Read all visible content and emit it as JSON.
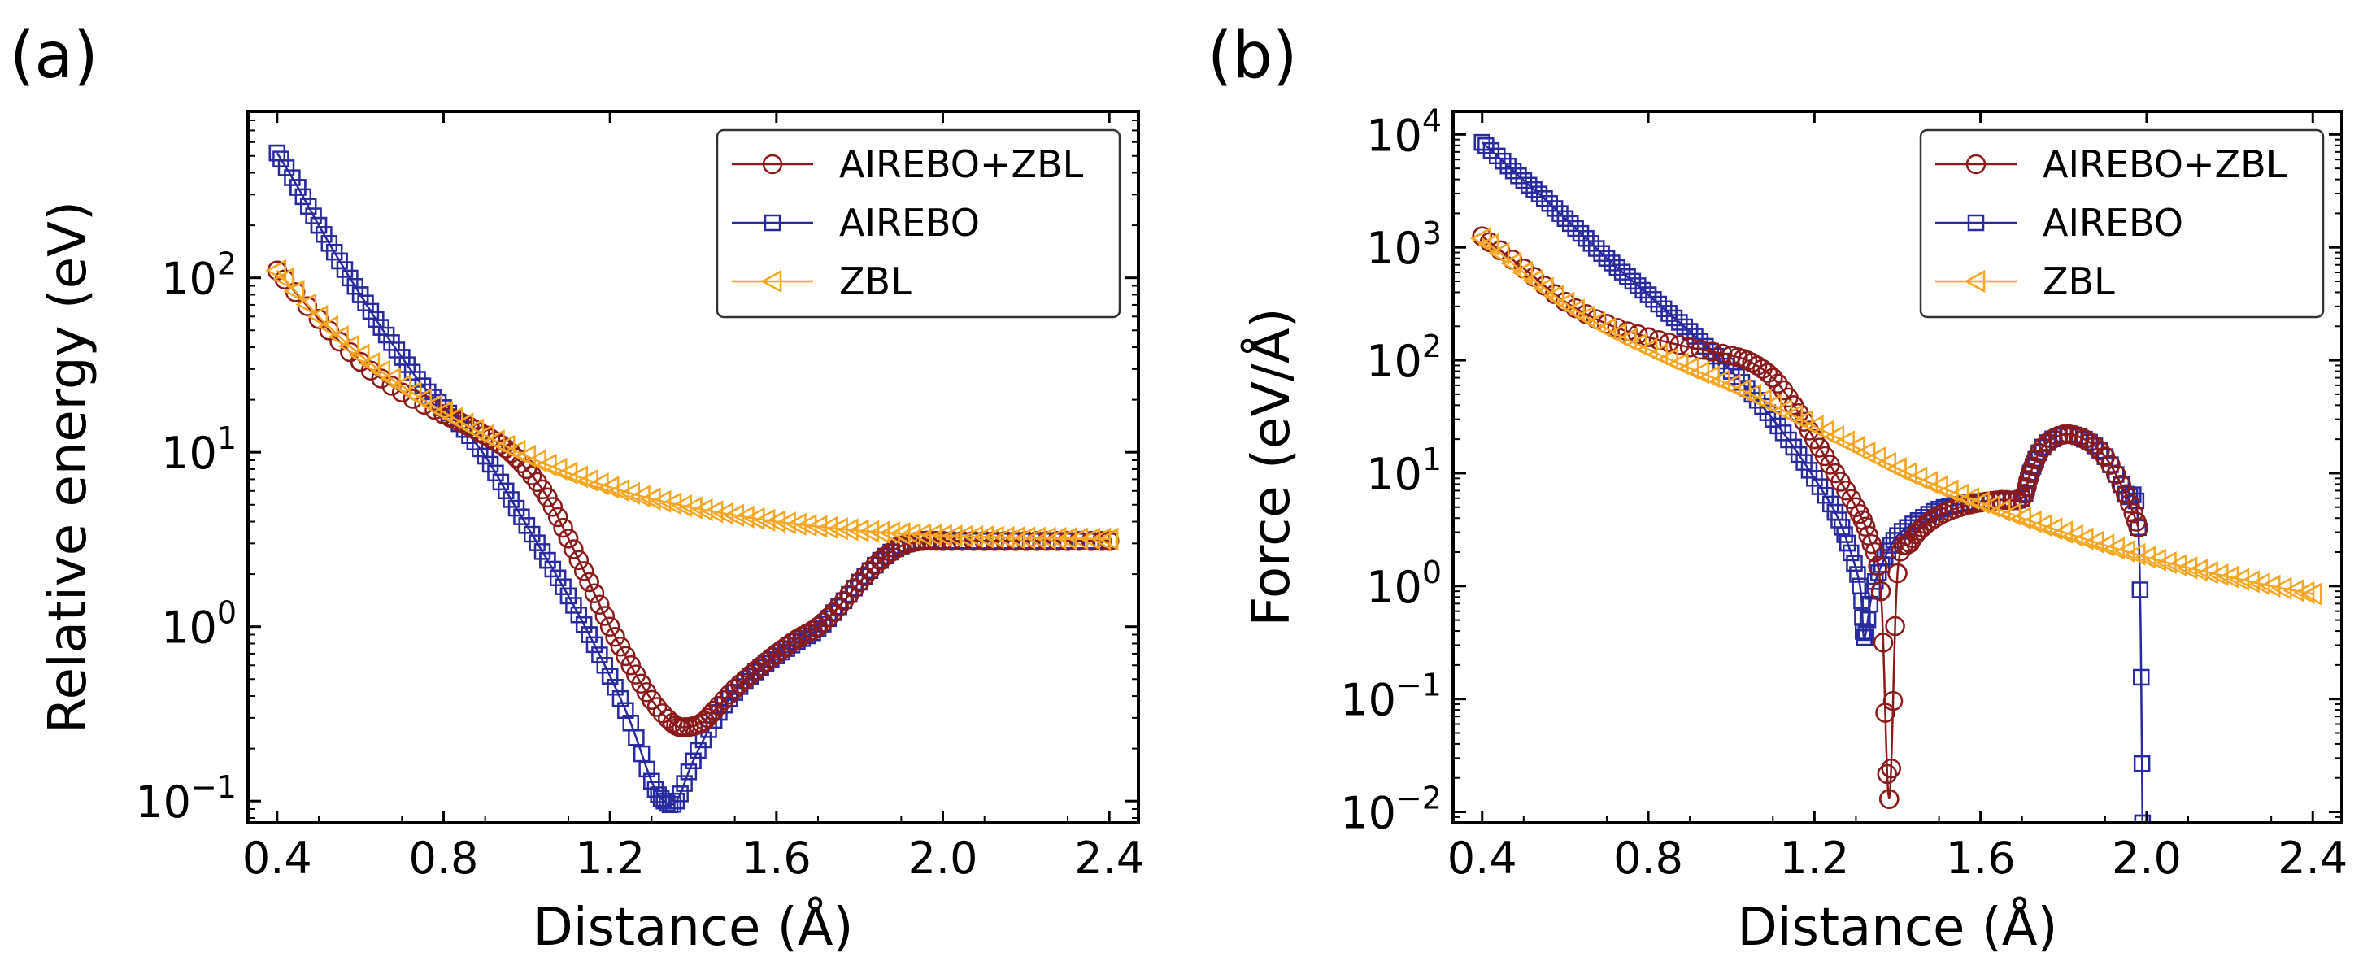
{
  "chart_data": [
    {
      "panel": "(a)",
      "type": "line",
      "title": "",
      "xlabel": "Distance (Å)",
      "ylabel": "Relative energy (eV)",
      "yscale": "log",
      "xlim": [
        0.33,
        2.47
      ],
      "ylim": [
        0.075,
        900
      ],
      "xticks": [
        0.4,
        0.8,
        1.2,
        1.6,
        2.0,
        2.4
      ],
      "xtick_labels": [
        "0.4",
        "0.8",
        "1.2",
        "1.6",
        "2.0",
        "2.4"
      ],
      "yticks": [
        0.1,
        1,
        10,
        100
      ],
      "ytick_labels": [
        {
          "base": "10",
          "exp": "−1"
        },
        {
          "base": "10",
          "exp": "0"
        },
        {
          "base": "10",
          "exp": "1"
        },
        {
          "base": "10",
          "exp": "2"
        }
      ],
      "grid": false,
      "legend_position": "top-right",
      "series": [
        {
          "name": "AIREBO+ZBL",
          "color": "#8b1a1a",
          "marker": "circle",
          "points": [
            [
              0.4,
              110
            ],
            [
              0.5,
              58
            ],
            [
              0.6,
              33
            ],
            [
              0.7,
              22
            ],
            [
              0.8,
              16.5
            ],
            [
              0.85,
              14.5
            ],
            [
              0.9,
              12.5
            ],
            [
              0.95,
              10.5
            ],
            [
              1.0,
              8
            ],
            [
              1.05,
              5.5
            ],
            [
              1.1,
              3.2
            ],
            [
              1.15,
              1.8
            ],
            [
              1.2,
              1.0
            ],
            [
              1.25,
              0.6
            ],
            [
              1.3,
              0.38
            ],
            [
              1.35,
              0.28
            ],
            [
              1.38,
              0.265
            ],
            [
              1.42,
              0.28
            ],
            [
              1.45,
              0.33
            ],
            [
              1.5,
              0.44
            ],
            [
              1.55,
              0.56
            ],
            [
              1.6,
              0.7
            ],
            [
              1.65,
              0.85
            ],
            [
              1.7,
              1.0
            ],
            [
              1.75,
              1.3
            ],
            [
              1.8,
              1.8
            ],
            [
              1.85,
              2.4
            ],
            [
              1.9,
              2.9
            ],
            [
              1.95,
              3.1
            ],
            [
              2.0,
              3.1
            ],
            [
              2.1,
              3.1
            ],
            [
              2.2,
              3.1
            ],
            [
              2.3,
              3.1
            ],
            [
              2.4,
              3.1
            ]
          ]
        },
        {
          "name": "AIREBO",
          "color": "#2a2aa0",
          "marker": "square",
          "points": [
            [
              0.4,
              520
            ],
            [
              0.45,
              330
            ],
            [
              0.5,
              200
            ],
            [
              0.55,
              125
            ],
            [
              0.6,
              80
            ],
            [
              0.65,
              52
            ],
            [
              0.7,
              35
            ],
            [
              0.75,
              24
            ],
            [
              0.8,
              18
            ],
            [
              0.85,
              13.5
            ],
            [
              0.9,
              9.5
            ],
            [
              0.95,
              6
            ],
            [
              1.0,
              3.8
            ],
            [
              1.05,
              2.4
            ],
            [
              1.1,
              1.5
            ],
            [
              1.15,
              0.9
            ],
            [
              1.2,
              0.52
            ],
            [
              1.25,
              0.28
            ],
            [
              1.3,
              0.13
            ],
            [
              1.33,
              0.1
            ],
            [
              1.36,
              0.1
            ],
            [
              1.4,
              0.17
            ],
            [
              1.45,
              0.29
            ],
            [
              1.5,
              0.42
            ],
            [
              1.55,
              0.55
            ],
            [
              1.6,
              0.68
            ],
            [
              1.65,
              0.82
            ],
            [
              1.7,
              0.97
            ],
            [
              1.75,
              1.3
            ],
            [
              1.8,
              1.8
            ],
            [
              1.85,
              2.4
            ],
            [
              1.9,
              2.9
            ],
            [
              1.95,
              3.1
            ],
            [
              2.0,
              3.1
            ],
            [
              2.1,
              3.1
            ],
            [
              2.2,
              3.1
            ],
            [
              2.3,
              3.1
            ],
            [
              2.4,
              3.1
            ]
          ]
        },
        {
          "name": "ZBL",
          "color": "#f5a623",
          "marker": "triangle-left",
          "points": [
            [
              0.4,
              110
            ],
            [
              0.5,
              60
            ],
            [
              0.6,
              36
            ],
            [
              0.7,
              24
            ],
            [
              0.8,
              17
            ],
            [
              0.9,
              12.5
            ],
            [
              1.0,
              9.5
            ],
            [
              1.1,
              7.6
            ],
            [
              1.2,
              6.3
            ],
            [
              1.3,
              5.4
            ],
            [
              1.4,
              4.8
            ],
            [
              1.5,
              4.35
            ],
            [
              1.6,
              4.0
            ],
            [
              1.7,
              3.75
            ],
            [
              1.8,
              3.55
            ],
            [
              1.9,
              3.42
            ],
            [
              2.0,
              3.33
            ],
            [
              2.1,
              3.27
            ],
            [
              2.2,
              3.23
            ],
            [
              2.3,
              3.2
            ],
            [
              2.4,
              3.18
            ]
          ]
        }
      ]
    },
    {
      "panel": "(b)",
      "type": "line",
      "title": "",
      "xlabel": "Distance (Å)",
      "ylabel": "Force (eV/Å)",
      "yscale": "log",
      "xlim": [
        0.33,
        2.47
      ],
      "ylim": [
        0.008,
        16000
      ],
      "xticks": [
        0.4,
        0.8,
        1.2,
        1.6,
        2.0,
        2.4
      ],
      "xtick_labels": [
        "0.4",
        "0.8",
        "1.2",
        "1.6",
        "2.0",
        "2.4"
      ],
      "yticks": [
        0.01,
        0.1,
        1,
        10,
        100,
        1000,
        10000
      ],
      "ytick_labels": [
        {
          "base": "10",
          "exp": "−2"
        },
        {
          "base": "10",
          "exp": "−1"
        },
        {
          "base": "10",
          "exp": "0"
        },
        {
          "base": "10",
          "exp": "1"
        },
        {
          "base": "10",
          "exp": "2"
        },
        {
          "base": "10",
          "exp": "3"
        },
        {
          "base": "10",
          "exp": "4"
        }
      ],
      "grid": false,
      "legend_position": "top-right",
      "series": [
        {
          "name": "AIREBO+ZBL",
          "color": "#8b1a1a",
          "marker": "circle",
          "points": [
            [
              0.4,
              1250
            ],
            [
              0.5,
              650
            ],
            [
              0.6,
              330
            ],
            [
              0.7,
              210
            ],
            [
              0.8,
              160
            ],
            [
              0.9,
              130
            ],
            [
              1.0,
              110
            ],
            [
              1.05,
              95
            ],
            [
              1.1,
              70
            ],
            [
              1.15,
              40
            ],
            [
              1.2,
              20
            ],
            [
              1.25,
              10
            ],
            [
              1.3,
              5
            ],
            [
              1.33,
              2.8
            ],
            [
              1.36,
              0.9
            ],
            [
              1.38,
              0.013
            ],
            [
              1.4,
              1.3
            ],
            [
              1.43,
              2.4
            ],
            [
              1.46,
              3.3
            ],
            [
              1.5,
              4.2
            ],
            [
              1.55,
              5
            ],
            [
              1.6,
              5.5
            ],
            [
              1.65,
              5.8
            ],
            [
              1.7,
              6
            ],
            [
              1.72,
              10
            ],
            [
              1.75,
              17
            ],
            [
              1.8,
              22
            ],
            [
              1.85,
              20
            ],
            [
              1.9,
              14
            ],
            [
              1.95,
              6.5
            ],
            [
              1.98,
              3.3
            ]
          ]
        },
        {
          "name": "AIREBO",
          "color": "#2a2aa0",
          "marker": "square",
          "points": [
            [
              0.4,
              8500
            ],
            [
              0.45,
              5800
            ],
            [
              0.5,
              3900
            ],
            [
              0.55,
              2700
            ],
            [
              0.6,
              1800
            ],
            [
              0.65,
              1200
            ],
            [
              0.7,
              800
            ],
            [
              0.75,
              550
            ],
            [
              0.8,
              380
            ],
            [
              0.85,
              260
            ],
            [
              0.9,
              180
            ],
            [
              0.95,
              120
            ],
            [
              1.0,
              80
            ],
            [
              1.05,
              50
            ],
            [
              1.1,
              30
            ],
            [
              1.15,
              17
            ],
            [
              1.2,
              9
            ],
            [
              1.25,
              4.5
            ],
            [
              1.28,
              2.4
            ],
            [
              1.31,
              1.0
            ],
            [
              1.32,
              0.35
            ],
            [
              1.34,
              0.9
            ],
            [
              1.37,
              1.8
            ],
            [
              1.4,
              2.8
            ],
            [
              1.45,
              3.8
            ],
            [
              1.5,
              4.8
            ],
            [
              1.55,
              5.3
            ],
            [
              1.6,
              5.6
            ],
            [
              1.65,
              5.8
            ],
            [
              1.7,
              6
            ],
            [
              1.72,
              10
            ],
            [
              1.75,
              17
            ],
            [
              1.8,
              22
            ],
            [
              1.85,
              20
            ],
            [
              1.9,
              14
            ],
            [
              1.95,
              6.5
            ],
            [
              1.98,
              3.3
            ],
            [
              1.99,
              0.008
            ]
          ]
        },
        {
          "name": "ZBL",
          "color": "#f5a623",
          "marker": "triangle-left",
          "points": [
            [
              0.4,
              1200
            ],
            [
              0.5,
              600
            ],
            [
              0.6,
              320
            ],
            [
              0.7,
              190
            ],
            [
              0.8,
              125
            ],
            [
              0.9,
              85
            ],
            [
              1.0,
              60
            ],
            [
              1.1,
              40
            ],
            [
              1.2,
              26
            ],
            [
              1.3,
              17
            ],
            [
              1.4,
              11
            ],
            [
              1.5,
              7.6
            ],
            [
              1.6,
              5.5
            ],
            [
              1.7,
              4.0
            ],
            [
              1.8,
              3.0
            ],
            [
              1.9,
              2.3
            ],
            [
              2.0,
              1.8
            ],
            [
              2.1,
              1.45
            ],
            [
              2.2,
              1.2
            ],
            [
              2.3,
              1.0
            ],
            [
              2.4,
              0.85
            ]
          ]
        }
      ]
    }
  ]
}
